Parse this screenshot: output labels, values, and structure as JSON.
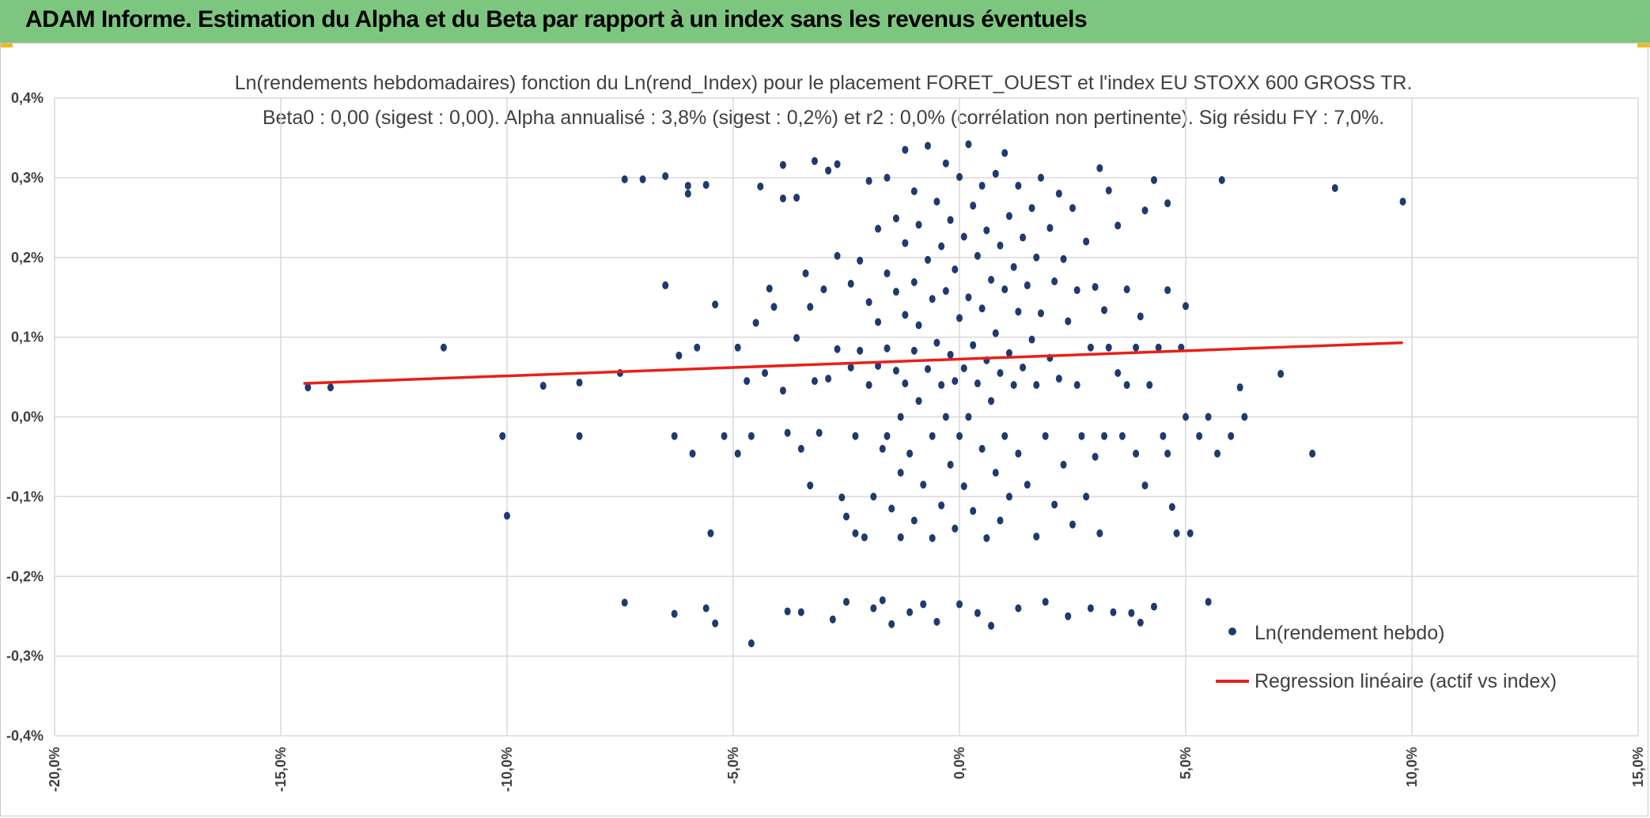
{
  "header": {
    "title": "ADAM Informe. Estimation du Alpha et du Beta par rapport à un index sans les revenus éventuels"
  },
  "colors": {
    "header_bg": "#7dc67f",
    "points": "#1f3a6e",
    "regression": "#e8201a",
    "grid": "#d9d9d9"
  },
  "chart_data": {
    "type": "scatter",
    "title": "Ln(rendements hebdomadaires) fonction du Ln(rend_Index) pour le placement FORET_OUEST et l'index EU STOXX 600 GROSS TR.",
    "subtitle": "Beta0 : 0,00 (sigest : 0,00). Alpha annualisé : 3,8% (sigest : 0,2%) et r2 : 0,0% (corrélation non pertinente). Sig résidu FY : 7,0%.",
    "xlim": [
      -20,
      15
    ],
    "ylim": [
      -0.4,
      0.4
    ],
    "x_ticks": [
      "-20,0%",
      "-15,0%",
      "-10,0%",
      "-5,0%",
      "0,0%",
      "5,0%",
      "10,0%",
      "15,0%"
    ],
    "y_ticks": [
      "0,4%",
      "0,3%",
      "0,2%",
      "0,1%",
      "0,0%",
      "-0,1%",
      "-0,2%",
      "-0,3%",
      "-0,4%"
    ],
    "grid": true,
    "legend_position": "bottom-right",
    "series": [
      {
        "name": "Ln(rendement hebdo)",
        "type": "scatter",
        "points": [
          [
            -14.4,
            0.037
          ],
          [
            -13.9,
            0.037
          ],
          [
            -11.4,
            0.087
          ],
          [
            -10.1,
            -0.024
          ],
          [
            -10.0,
            -0.124
          ],
          [
            -9.2,
            0.039
          ],
          [
            -8.4,
            0.043
          ],
          [
            -8.4,
            -0.024
          ],
          [
            -7.5,
            0.055
          ],
          [
            -7.4,
            0.298
          ],
          [
            -7.4,
            -0.233
          ],
          [
            -7.0,
            0.298
          ],
          [
            -6.5,
            0.302
          ],
          [
            -6.5,
            0.165
          ],
          [
            -6.3,
            -0.024
          ],
          [
            -6.3,
            -0.247
          ],
          [
            -6.2,
            0.077
          ],
          [
            -6.0,
            0.29
          ],
          [
            -6.0,
            0.28
          ],
          [
            -5.9,
            -0.046
          ],
          [
            -5.8,
            0.087
          ],
          [
            -5.6,
            0.291
          ],
          [
            -5.6,
            -0.24
          ],
          [
            -5.5,
            -0.146
          ],
          [
            -5.4,
            0.141
          ],
          [
            -5.4,
            -0.259
          ],
          [
            -5.2,
            -0.024
          ],
          [
            -4.9,
            0.087
          ],
          [
            -4.9,
            -0.046
          ],
          [
            -4.7,
            0.045
          ],
          [
            -4.6,
            -0.024
          ],
          [
            -4.6,
            -0.284
          ],
          [
            -4.5,
            0.118
          ],
          [
            -4.4,
            0.289
          ],
          [
            -4.3,
            0.055
          ],
          [
            -4.2,
            0.161
          ],
          [
            -4.1,
            0.138
          ],
          [
            -3.9,
            0.316
          ],
          [
            -3.9,
            0.274
          ],
          [
            -3.9,
            0.033
          ],
          [
            -3.8,
            -0.02
          ],
          [
            -3.8,
            -0.244
          ],
          [
            -3.6,
            0.099
          ],
          [
            -3.6,
            0.275
          ],
          [
            -3.5,
            -0.04
          ],
          [
            -3.5,
            -0.245
          ],
          [
            -3.4,
            0.18
          ],
          [
            -3.3,
            0.138
          ],
          [
            -3.3,
            -0.086
          ],
          [
            -3.2,
            0.321
          ],
          [
            -3.2,
            0.045
          ],
          [
            -3.1,
            -0.02
          ],
          [
            -3.0,
            0.16
          ],
          [
            -2.9,
            0.309
          ],
          [
            -2.9,
            0.048
          ],
          [
            -2.8,
            -0.254
          ],
          [
            -2.7,
            0.317
          ],
          [
            -2.7,
            0.202
          ],
          [
            -2.7,
            0.085
          ],
          [
            -2.6,
            -0.101
          ],
          [
            -2.5,
            -0.125
          ],
          [
            -2.5,
            -0.232
          ],
          [
            -2.4,
            0.167
          ],
          [
            -2.4,
            0.062
          ],
          [
            -2.3,
            -0.024
          ],
          [
            -2.3,
            -0.146
          ],
          [
            -2.2,
            0.196
          ],
          [
            -2.2,
            0.083
          ],
          [
            -2.1,
            -0.151
          ],
          [
            -2.0,
            0.296
          ],
          [
            -2.0,
            0.144
          ],
          [
            -2.0,
            0.04
          ],
          [
            -1.9,
            -0.1
          ],
          [
            -1.9,
            -0.24
          ],
          [
            -1.8,
            0.236
          ],
          [
            -1.8,
            0.119
          ],
          [
            -1.8,
            0.064
          ],
          [
            -1.7,
            -0.04
          ],
          [
            -1.7,
            -0.23
          ],
          [
            -1.6,
            0.3
          ],
          [
            -1.6,
            0.18
          ],
          [
            -1.6,
            0.086
          ],
          [
            -1.6,
            -0.024
          ],
          [
            -1.5,
            -0.115
          ],
          [
            -1.5,
            -0.26
          ],
          [
            -1.4,
            0.249
          ],
          [
            -1.4,
            0.157
          ],
          [
            -1.4,
            0.058
          ],
          [
            -1.3,
            0.0
          ],
          [
            -1.3,
            -0.07
          ],
          [
            -1.3,
            -0.151
          ],
          [
            -1.2,
            0.335
          ],
          [
            -1.2,
            0.218
          ],
          [
            -1.2,
            0.128
          ],
          [
            -1.2,
            0.042
          ],
          [
            -1.1,
            -0.046
          ],
          [
            -1.1,
            -0.245
          ],
          [
            -1.0,
            0.283
          ],
          [
            -1.0,
            0.169
          ],
          [
            -1.0,
            0.083
          ],
          [
            -1.0,
            -0.13
          ],
          [
            -0.9,
            0.241
          ],
          [
            -0.9,
            0.115
          ],
          [
            -0.9,
            0.02
          ],
          [
            -0.8,
            -0.085
          ],
          [
            -0.8,
            -0.235
          ],
          [
            -0.7,
            0.34
          ],
          [
            -0.7,
            0.197
          ],
          [
            -0.7,
            0.06
          ],
          [
            -0.6,
            0.148
          ],
          [
            -0.6,
            -0.024
          ],
          [
            -0.6,
            -0.152
          ],
          [
            -0.5,
            0.27
          ],
          [
            -0.5,
            0.093
          ],
          [
            -0.5,
            -0.257
          ],
          [
            -0.4,
            0.214
          ],
          [
            -0.4,
            0.04
          ],
          [
            -0.4,
            -0.111
          ],
          [
            -0.3,
            0.318
          ],
          [
            -0.3,
            0.158
          ],
          [
            -0.3,
            0.0
          ],
          [
            -0.2,
            0.247
          ],
          [
            -0.2,
            0.078
          ],
          [
            -0.2,
            -0.06
          ],
          [
            -0.1,
            0.185
          ],
          [
            -0.1,
            0.045
          ],
          [
            -0.1,
            -0.14
          ],
          [
            0.0,
            0.301
          ],
          [
            0.0,
            0.124
          ],
          [
            0.0,
            -0.024
          ],
          [
            0.0,
            -0.235
          ],
          [
            0.1,
            0.226
          ],
          [
            0.1,
            0.061
          ],
          [
            0.1,
            -0.087
          ],
          [
            0.2,
            0.342
          ],
          [
            0.2,
            0.15
          ],
          [
            0.2,
            0.0
          ],
          [
            0.3,
            0.265
          ],
          [
            0.3,
            0.09
          ],
          [
            0.3,
            -0.118
          ],
          [
            0.4,
            0.202
          ],
          [
            0.4,
            0.042
          ],
          [
            0.4,
            -0.246
          ],
          [
            0.5,
            0.29
          ],
          [
            0.5,
            0.136
          ],
          [
            0.5,
            -0.04
          ],
          [
            0.6,
            0.234
          ],
          [
            0.6,
            0.071
          ],
          [
            0.6,
            -0.152
          ],
          [
            0.7,
            0.172
          ],
          [
            0.7,
            0.02
          ],
          [
            0.7,
            -0.262
          ],
          [
            0.8,
            0.305
          ],
          [
            0.8,
            0.105
          ],
          [
            0.8,
            -0.07
          ],
          [
            0.9,
            0.215
          ],
          [
            0.9,
            0.055
          ],
          [
            0.9,
            -0.13
          ],
          [
            1.0,
            0.331
          ],
          [
            1.0,
            0.16
          ],
          [
            1.0,
            -0.024
          ],
          [
            1.1,
            0.252
          ],
          [
            1.1,
            0.08
          ],
          [
            1.1,
            -0.1
          ],
          [
            1.2,
            0.188
          ],
          [
            1.2,
            0.04
          ],
          [
            1.3,
            0.29
          ],
          [
            1.3,
            0.132
          ],
          [
            1.3,
            -0.046
          ],
          [
            1.3,
            -0.24
          ],
          [
            1.4,
            0.225
          ],
          [
            1.4,
            0.062
          ],
          [
            1.5,
            0.165
          ],
          [
            1.5,
            -0.085
          ],
          [
            1.6,
            0.262
          ],
          [
            1.6,
            0.097
          ],
          [
            1.7,
            0.2
          ],
          [
            1.7,
            0.04
          ],
          [
            1.7,
            -0.15
          ],
          [
            1.8,
            0.3
          ],
          [
            1.8,
            0.13
          ],
          [
            1.9,
            -0.024
          ],
          [
            1.9,
            -0.232
          ],
          [
            2.0,
            0.237
          ],
          [
            2.0,
            0.074
          ],
          [
            2.1,
            0.17
          ],
          [
            2.1,
            -0.11
          ],
          [
            2.2,
            0.28
          ],
          [
            2.2,
            0.048
          ],
          [
            2.3,
            0.198
          ],
          [
            2.3,
            -0.06
          ],
          [
            2.4,
            0.12
          ],
          [
            2.4,
            -0.25
          ],
          [
            2.5,
            0.262
          ],
          [
            2.5,
            -0.135
          ],
          [
            2.6,
            0.159
          ],
          [
            2.6,
            0.04
          ],
          [
            2.7,
            -0.024
          ],
          [
            2.8,
            0.22
          ],
          [
            2.8,
            -0.1
          ],
          [
            2.9,
            0.087
          ],
          [
            2.9,
            -0.24
          ],
          [
            3.0,
            0.163
          ],
          [
            3.0,
            -0.05
          ],
          [
            3.1,
            0.312
          ],
          [
            3.1,
            -0.146
          ],
          [
            3.2,
            0.134
          ],
          [
            3.2,
            -0.024
          ],
          [
            3.3,
            0.284
          ],
          [
            3.3,
            0.087
          ],
          [
            3.4,
            -0.245
          ],
          [
            3.5,
            0.24
          ],
          [
            3.5,
            0.055
          ],
          [
            3.6,
            -0.024
          ],
          [
            3.7,
            0.16
          ],
          [
            3.7,
            0.04
          ],
          [
            3.8,
            -0.246
          ],
          [
            3.9,
            0.087
          ],
          [
            3.9,
            -0.046
          ],
          [
            4.0,
            0.126
          ],
          [
            4.0,
            -0.258
          ],
          [
            4.1,
            0.259
          ],
          [
            4.1,
            -0.086
          ],
          [
            4.2,
            0.04
          ],
          [
            4.3,
            0.297
          ],
          [
            4.3,
            -0.238
          ],
          [
            4.4,
            0.087
          ],
          [
            4.5,
            -0.024
          ],
          [
            4.6,
            0.268
          ],
          [
            4.6,
            0.159
          ],
          [
            4.6,
            -0.046
          ],
          [
            4.7,
            -0.113
          ],
          [
            4.8,
            -0.146
          ],
          [
            4.9,
            0.087
          ],
          [
            5.0,
            0.139
          ],
          [
            5.0,
            0.0
          ],
          [
            5.1,
            -0.146
          ],
          [
            5.3,
            -0.024
          ],
          [
            5.5,
            -0.232
          ],
          [
            5.5,
            0.0
          ],
          [
            5.7,
            -0.046
          ],
          [
            5.8,
            0.297
          ],
          [
            6.0,
            -0.024
          ],
          [
            6.2,
            0.037
          ],
          [
            6.3,
            0.0
          ],
          [
            7.1,
            0.054
          ],
          [
            7.8,
            -0.046
          ],
          [
            8.3,
            0.287
          ],
          [
            9.8,
            0.27
          ]
        ]
      },
      {
        "name": "Regression linéaire (actif vs index)",
        "type": "line",
        "points": [
          [
            -14.5,
            0.042
          ],
          [
            9.8,
            0.093
          ]
        ]
      }
    ]
  }
}
